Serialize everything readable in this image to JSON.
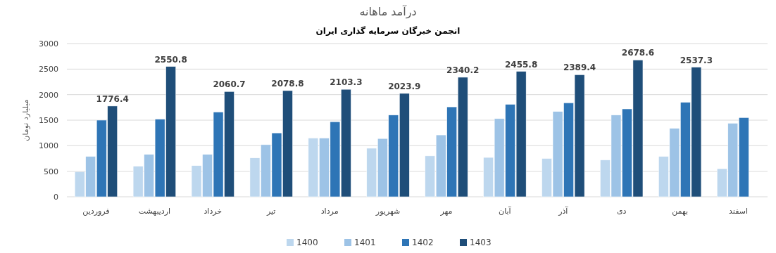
{
  "chart_data": {
    "type": "bar",
    "title": "درآمد ماهانه",
    "subtitle": "انجمن خبرگان سرمایه گذاری ایران",
    "ylabel": "میلیارد تومان",
    "categories": [
      "فروردین",
      "اردیبهشت",
      "خرداد",
      "تیر",
      "مرداد",
      "شهریور",
      "مهر",
      "آبان",
      "آذر",
      "دی",
      "بهمن",
      "اسفند"
    ],
    "series": [
      {
        "name": "1400",
        "color": "#bdd7ee",
        "values": [
          490,
          600,
          610,
          760,
          1150,
          950,
          800,
          770,
          750,
          720,
          790,
          550
        ]
      },
      {
        "name": "1401",
        "color": "#9dc3e6",
        "values": [
          790,
          830,
          830,
          1020,
          1150,
          1140,
          1210,
          1530,
          1670,
          1600,
          1340,
          1440
        ]
      },
      {
        "name": "1402",
        "color": "#2e75b6",
        "values": [
          1500,
          1520,
          1660,
          1250,
          1470,
          1600,
          1760,
          1810,
          1840,
          1720,
          1850,
          1550
        ]
      },
      {
        "name": "1403",
        "color": "#1f4e79",
        "values": [
          1776.4,
          2550.8,
          2060.7,
          2078.8,
          2103.3,
          2023.9,
          2340.2,
          2455.8,
          2389.4,
          2678.6,
          2537.3,
          null
        ],
        "value_labels": [
          "1776.4",
          "2550.8",
          "2060.7",
          "2078.8",
          "2103.3",
          "2023.9",
          "2340.2",
          "2455.8",
          "2389.4",
          "2678.6",
          "2537.3",
          null
        ]
      }
    ],
    "ylim": [
      0,
      3000
    ],
    "yticks": [
      0,
      500,
      1000,
      1500,
      2000,
      2500,
      3000
    ],
    "grid": "y",
    "legend": "bottom"
  }
}
